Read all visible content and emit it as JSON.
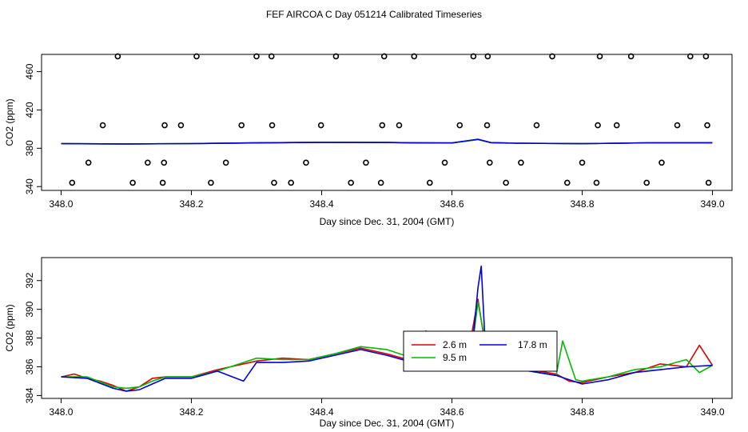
{
  "title": "FEF AIRCOA C  Day 051214  Calibrated Timeseries",
  "colors": {
    "red": "#dd0000",
    "green": "#00bb00",
    "blue": "#0000dd",
    "axis": "#000000"
  },
  "chart_data": [
    {
      "type": "scatter",
      "xlabel": "Day since Dec. 31, 2004 (GMT)",
      "ylabel": "CO2 (ppm)",
      "xlim": [
        347.97,
        349.03
      ],
      "ylim": [
        336,
        478
      ],
      "xticks": [
        "348.0",
        "348.2",
        "348.4",
        "348.6",
        "348.8",
        "349.0"
      ],
      "yticks": [
        "340",
        "380",
        "420",
        "460"
      ],
      "points_x": [
        348.017,
        348.042,
        348.064,
        348.087,
        348.11,
        348.133,
        348.156,
        348.158,
        348.159,
        348.184,
        348.208,
        348.23,
        348.253,
        348.277,
        348.3,
        348.323,
        348.324,
        348.327,
        348.353,
        348.376,
        348.399,
        348.422,
        348.445,
        348.468,
        348.491,
        348.493,
        348.496,
        348.519,
        348.542,
        348.566,
        348.589,
        348.612,
        348.633,
        348.654,
        348.655,
        348.658,
        348.683,
        348.706,
        348.73,
        348.754,
        348.777,
        348.8,
        348.822,
        348.824,
        348.827,
        348.853,
        348.875,
        348.899,
        348.922,
        348.946,
        348.966,
        348.99,
        348.992,
        348.994
      ],
      "points_y": [
        344,
        365,
        404,
        476,
        344,
        365,
        344,
        365,
        404,
        404,
        476,
        344,
        365,
        404,
        476,
        476,
        404,
        344,
        344,
        365,
        404,
        476,
        344,
        365,
        344,
        404,
        476,
        404,
        476,
        344,
        365,
        404,
        476,
        404,
        476,
        365,
        344,
        365,
        404,
        476,
        344,
        365,
        344,
        404,
        476,
        404,
        476,
        344,
        365,
        404,
        476,
        476,
        404,
        344
      ],
      "series": [
        {
          "color": "red",
          "x": [
            348.0,
            348.1,
            348.2,
            348.3,
            348.4,
            348.5,
            348.55,
            348.6,
            348.64,
            348.66,
            348.7,
            348.8,
            348.9,
            349.0
          ],
          "y": [
            384.8,
            384.5,
            384.9,
            385.6,
            386.2,
            386.0,
            385.6,
            385.5,
            389.0,
            385.9,
            385.3,
            384.8,
            385.7,
            385.8
          ]
        },
        {
          "color": "green",
          "x": [
            348.0,
            348.1,
            348.2,
            348.3,
            348.4,
            348.5,
            348.55,
            348.6,
            348.64,
            348.66,
            348.7,
            348.8,
            348.9,
            349.0
          ],
          "y": [
            384.8,
            384.5,
            384.9,
            385.6,
            386.2,
            386.0,
            385.6,
            385.5,
            389.0,
            385.9,
            385.3,
            384.8,
            385.7,
            385.8
          ]
        },
        {
          "color": "blue",
          "x": [
            348.0,
            348.1,
            348.2,
            348.3,
            348.4,
            348.5,
            348.55,
            348.6,
            348.64,
            348.66,
            348.7,
            348.8,
            348.9,
            349.0
          ],
          "y": [
            384.8,
            384.5,
            384.9,
            385.6,
            386.2,
            386.0,
            385.6,
            385.5,
            389.5,
            385.9,
            385.3,
            384.8,
            385.7,
            385.8
          ]
        }
      ]
    },
    {
      "type": "line",
      "xlabel": "Day since Dec. 31, 2004 (GMT)",
      "ylabel": "CO2 (ppm)",
      "xlim": [
        347.97,
        349.03
      ],
      "ylim": [
        383.8,
        393.6
      ],
      "xticks": [
        "348.0",
        "348.2",
        "348.4",
        "348.6",
        "348.8",
        "349.0"
      ],
      "yticks": [
        "384",
        "386",
        "388",
        "390",
        "392"
      ],
      "legend": [
        "2.6 m",
        "9.5 m",
        "17.8 m"
      ],
      "series": [
        {
          "name": "2.6 m",
          "color": "red",
          "x": [
            348.0,
            348.02,
            348.04,
            348.06,
            348.08,
            348.1,
            348.12,
            348.14,
            348.16,
            348.2,
            348.24,
            348.3,
            348.34,
            348.38,
            348.42,
            348.46,
            348.5,
            348.54,
            348.56,
            348.58,
            348.6,
            348.62,
            348.63,
            348.64,
            348.65,
            348.66,
            348.68,
            348.72,
            348.76,
            348.78,
            348.8,
            348.84,
            348.88,
            348.92,
            348.96,
            348.98,
            349.0
          ],
          "y": [
            385.3,
            385.5,
            385.2,
            385.0,
            384.7,
            384.3,
            384.6,
            385.2,
            385.3,
            385.3,
            385.8,
            386.4,
            386.6,
            386.5,
            386.9,
            387.3,
            386.9,
            386.4,
            388.5,
            386.1,
            386.6,
            386.3,
            388.2,
            390.7,
            387.8,
            386.6,
            386.0,
            385.8,
            385.5,
            385.0,
            384.9,
            385.3,
            385.6,
            386.2,
            386.0,
            387.5,
            386.1
          ]
        },
        {
          "name": "9.5 m",
          "color": "green",
          "x": [
            348.0,
            348.04,
            348.08,
            348.1,
            348.12,
            348.14,
            348.16,
            348.2,
            348.24,
            348.3,
            348.34,
            348.38,
            348.42,
            348.46,
            348.5,
            348.54,
            348.56,
            348.58,
            348.6,
            348.62,
            348.63,
            348.64,
            348.65,
            348.66,
            348.68,
            348.72,
            348.76,
            348.77,
            348.79,
            348.8,
            348.84,
            348.88,
            348.92,
            348.96,
            348.98,
            349.0
          ],
          "y": [
            385.3,
            385.3,
            384.6,
            384.5,
            384.6,
            385.0,
            385.3,
            385.3,
            385.7,
            386.6,
            386.5,
            386.5,
            386.9,
            387.4,
            387.2,
            386.6,
            386.2,
            387.9,
            386.1,
            386.5,
            387.0,
            390.5,
            388.0,
            386.3,
            386.0,
            385.7,
            385.4,
            387.8,
            385.1,
            385.0,
            385.3,
            385.8,
            386.0,
            386.5,
            385.6,
            386.1
          ]
        },
        {
          "name": "17.8 m",
          "color": "blue",
          "x": [
            348.0,
            348.04,
            348.08,
            348.1,
            348.12,
            348.14,
            348.16,
            348.2,
            348.24,
            348.28,
            348.3,
            348.34,
            348.38,
            348.42,
            348.46,
            348.5,
            348.54,
            348.58,
            348.6,
            348.62,
            348.63,
            348.64,
            348.645,
            348.65,
            348.66,
            348.68,
            348.72,
            348.76,
            348.8,
            348.84,
            348.88,
            348.92,
            348.96,
            349.0
          ],
          "y": [
            385.3,
            385.2,
            384.5,
            384.3,
            384.4,
            384.8,
            385.2,
            385.2,
            385.7,
            385.0,
            386.3,
            386.3,
            386.4,
            386.8,
            387.2,
            386.8,
            386.3,
            386.0,
            386.1,
            386.3,
            386.8,
            391.5,
            393.0,
            388.5,
            386.4,
            385.9,
            385.7,
            385.4,
            384.8,
            385.1,
            385.6,
            385.8,
            386.0,
            386.1
          ]
        }
      ]
    }
  ]
}
